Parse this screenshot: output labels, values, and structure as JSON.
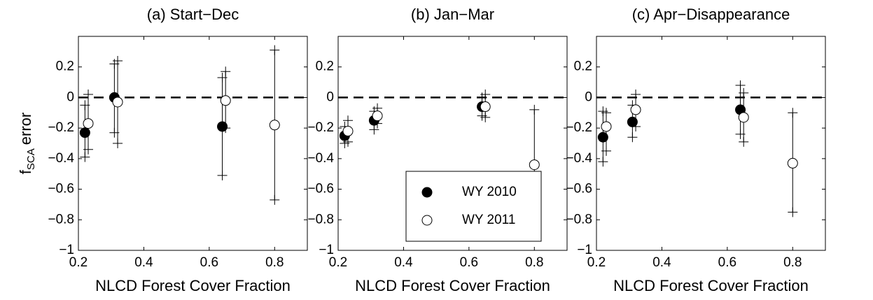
{
  "chart_data": [
    {
      "type": "errorbar",
      "title": "(a) Start−Dec",
      "xlabel": "NLCD Forest Cover Fraction",
      "ylabel": {
        "main": "f",
        "sub": "SCA",
        "rest": "error"
      },
      "xlim": [
        0.2,
        0.9
      ],
      "ylim": [
        -1,
        0.4
      ],
      "hline": 0,
      "xticks": [
        0.2,
        0.4,
        0.6,
        0.8
      ],
      "yticks": [
        0.2,
        0,
        {
          "value": -0.2,
          "label": "−0.2"
        },
        {
          "value": -0.4,
          "label": "−0.4"
        },
        {
          "value": -0.6,
          "label": "−0.6"
        },
        {
          "value": -0.8,
          "label": "−0.8"
        },
        {
          "value": -1,
          "label": "−1"
        }
      ],
      "series": [
        {
          "color": "#000000",
          "x": [
            0.22,
            0.31,
            0.64
          ],
          "values": [
            -0.23,
            0.0,
            -0.19
          ],
          "err_low": [
            -0.39,
            -0.23,
            -0.51
          ],
          "err_high": [
            -0.05,
            0.22,
            0.13
          ]
        },
        {
          "color": "#ffffff",
          "x": [
            0.23,
            0.32,
            0.65,
            0.8
          ],
          "values": [
            -0.17,
            -0.03,
            -0.02,
            -0.18
          ],
          "err_low": [
            -0.34,
            -0.3,
            -0.2,
            -0.67
          ],
          "err_high": [
            0.02,
            0.24,
            0.17,
            0.31
          ]
        }
      ]
    },
    {
      "type": "errorbar",
      "title": "(b) Jan−Mar",
      "xlabel": "NLCD Forest Cover Fraction",
      "xlim": [
        0.2,
        0.9
      ],
      "ylim": [
        -1,
        0.4
      ],
      "hline": 0,
      "legend": "lower center",
      "xticks": [
        0.2,
        0.4,
        0.6,
        0.8
      ],
      "yticks": [
        0.2,
        0,
        {
          "value": -0.2,
          "label": "−0.2"
        },
        {
          "value": -0.4,
          "label": "−0.4"
        },
        {
          "value": -0.6,
          "label": "−0.6"
        },
        {
          "value": -0.8,
          "label": "−0.8"
        },
        {
          "value": -1,
          "label": "−1"
        }
      ],
      "series": [
        {
          "name": "WY 2010",
          "color": "#000000",
          "x": [
            0.22,
            0.31,
            0.64
          ],
          "values": [
            -0.25,
            -0.15,
            -0.06
          ],
          "err_low": [
            -0.3,
            -0.21,
            -0.12
          ],
          "err_high": [
            -0.19,
            -0.09,
            0.0
          ]
        },
        {
          "name": "WY 2011",
          "color": "#ffffff",
          "x": [
            0.23,
            0.32,
            0.65,
            0.8
          ],
          "values": [
            -0.22,
            -0.12,
            -0.06,
            -0.44
          ],
          "err_low": [
            -0.29,
            -0.17,
            -0.13,
            -0.81
          ],
          "err_high": [
            -0.15,
            -0.07,
            0.02,
            -0.08
          ]
        }
      ]
    },
    {
      "type": "errorbar",
      "title": "(c) Apr−Disappearance",
      "xlabel": "NLCD Forest Cover Fraction",
      "xlim": [
        0.2,
        0.9
      ],
      "ylim": [
        -1,
        0.4
      ],
      "hline": 0,
      "xticks": [
        0.2,
        0.4,
        0.6,
        0.8
      ],
      "yticks": [
        0.2,
        0,
        {
          "value": -0.2,
          "label": "−0.2"
        },
        {
          "value": -0.4,
          "label": "−0.4"
        },
        {
          "value": -0.6,
          "label": "−0.6"
        },
        {
          "value": -0.8,
          "label": "−0.8"
        },
        {
          "value": -1,
          "label": "−1"
        }
      ],
      "series": [
        {
          "color": "#000000",
          "x": [
            0.22,
            0.31,
            0.64
          ],
          "values": [
            -0.26,
            -0.16,
            -0.08
          ],
          "err_low": [
            -0.42,
            -0.26,
            -0.24
          ],
          "err_high": [
            -0.09,
            -0.05,
            0.08
          ]
        },
        {
          "color": "#ffffff",
          "x": [
            0.23,
            0.32,
            0.65,
            0.8
          ],
          "values": [
            -0.19,
            -0.08,
            -0.13,
            -0.43
          ],
          "err_low": [
            -0.35,
            -0.19,
            -0.29,
            -0.75
          ],
          "err_high": [
            -0.1,
            0.02,
            0.03,
            -0.1
          ]
        }
      ]
    }
  ]
}
